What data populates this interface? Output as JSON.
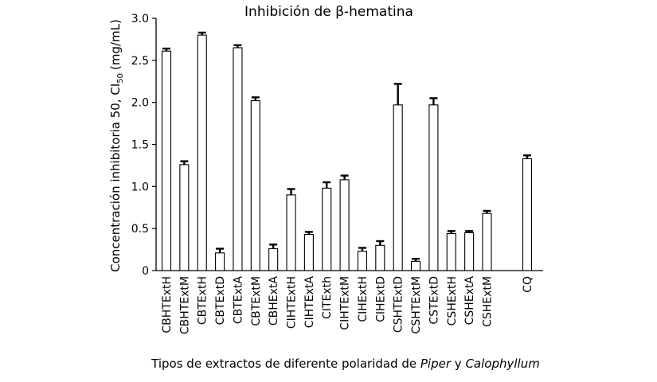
{
  "chart_data": {
    "type": "bar",
    "title": "Inhibición de β-hematina",
    "ylabel": "Concentración inhibitoria 50, CI",
    "ylabel_subscript": "50",
    "ylabel_unit": "(mg/mL)",
    "xlabel_parts": [
      {
        "text": "Tipos de extractos de diferente polaridad de ",
        "italic": false
      },
      {
        "text": "Piper",
        "italic": true
      },
      {
        "text": " y ",
        "italic": false
      },
      {
        "text": "Calophyllum",
        "italic": true
      }
    ],
    "ylim": [
      0,
      3.0
    ],
    "yticks": [
      "0",
      "0.5",
      "1.0",
      "1.5",
      "2.0",
      "2.5",
      "3.0"
    ],
    "categories": [
      "CBHTExtH",
      "CBHTExtM",
      "CBTExtH",
      "CBTExtD",
      "CBTExtA",
      "CBTExtM",
      "CBHExtA",
      "CIHTExtH",
      "CIHTExtA",
      "CITExth",
      "CIHTExtM",
      "CIHExtH",
      "CIHExtD",
      "CSHTExtD",
      "CSHTExtM",
      "CSTExtD",
      "CSHExtH",
      "CSHExtA",
      "CSHExtM",
      "CQ"
    ],
    "values": [
      2.61,
      1.26,
      2.8,
      0.21,
      2.65,
      2.02,
      0.26,
      0.9,
      0.43,
      0.98,
      1.08,
      0.23,
      0.3,
      1.97,
      0.11,
      1.97,
      0.44,
      0.45,
      0.68,
      1.33
    ],
    "errors": [
      0.03,
      0.04,
      0.03,
      0.05,
      0.03,
      0.04,
      0.05,
      0.07,
      0.03,
      0.07,
      0.05,
      0.04,
      0.05,
      0.25,
      0.03,
      0.08,
      0.03,
      0.02,
      0.03,
      0.04
    ],
    "grid": false,
    "colors": {
      "bar_fill": "#ffffff",
      "bar_stroke": "#000000",
      "error": "#000000"
    }
  }
}
